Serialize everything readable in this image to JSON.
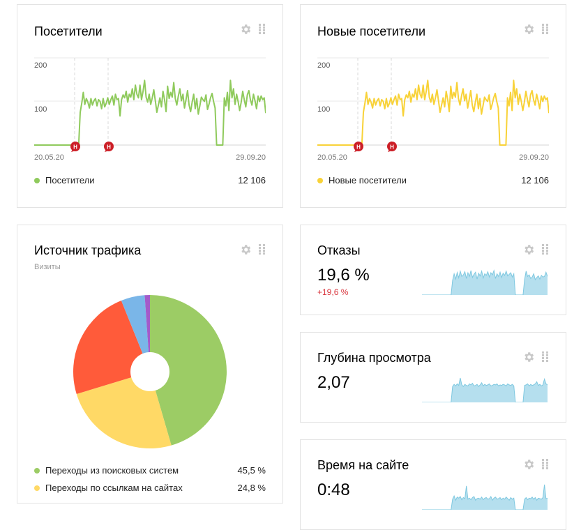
{
  "cards": {
    "visitors": {
      "title": "Посетители",
      "legend_label": "Посетители",
      "total": "12 106",
      "color": "#8fca5c",
      "y_ticks": [
        "200",
        "100"
      ],
      "date_start": "20.05.20",
      "date_end": "29.09.20",
      "marker_label": "Н"
    },
    "new_visitors": {
      "title": "Новые посетители",
      "legend_label": "Новые посетители",
      "total": "12 106",
      "color": "#f8d238",
      "y_ticks": [
        "200",
        "100"
      ],
      "date_start": "20.05.20",
      "date_end": "29.09.20",
      "marker_label": "Н"
    },
    "traffic_source": {
      "title": "Источник трафика",
      "subtitle": "Визиты",
      "items": [
        {
          "label": "Переходы из поисковых систем",
          "value": "45,5 %",
          "color": "#9ccc65"
        },
        {
          "label": "Переходы по ссылкам на сайтах",
          "value": "24,8 %",
          "color": "#ffd966"
        }
      ]
    },
    "bounces": {
      "title": "Отказы",
      "value": "19,6 %",
      "delta": "+19,6 %"
    },
    "depth": {
      "title": "Глубина просмотра",
      "value": "2,07"
    },
    "time_on_site": {
      "title": "Время на сайте",
      "value": "0:48"
    }
  },
  "icons": {
    "settings": "gear-icon",
    "drag": "drag-handle-icon",
    "marker": "event-marker-icon"
  },
  "chart_data": [
    {
      "type": "line",
      "title": "Посетители",
      "x_range": [
        "20.05.20",
        "29.09.20"
      ],
      "ylim": [
        0,
        240
      ],
      "yticks": [
        100,
        200
      ],
      "series": [
        {
          "name": "Посетители",
          "color": "#8fca5c",
          "values": [
            0,
            0,
            0,
            0,
            0,
            0,
            0,
            0,
            0,
            0,
            0,
            0,
            0,
            0,
            0,
            0,
            0,
            0,
            0,
            0,
            0,
            0,
            0,
            0,
            0,
            0,
            0,
            0,
            0,
            0,
            90,
            115,
            145,
            112,
            128,
            118,
            102,
            128,
            110,
            122,
            128,
            108,
            125,
            120,
            100,
            128,
            105,
            115,
            130,
            112,
            125,
            135,
            110,
            140,
            125,
            128,
            80,
            125,
            138,
            130,
            148,
            118,
            140,
            132,
            155,
            125,
            165,
            140,
            130,
            165,
            125,
            148,
            178,
            132,
            118,
            140,
            112,
            130,
            152,
            122,
            90,
            110,
            130,
            105,
            148,
            125,
            92,
            162,
            128,
            145,
            132,
            172,
            128,
            110,
            135,
            155,
            122,
            140,
            102,
            125,
            150,
            110,
            92,
            118,
            140,
            100,
            128,
            85,
            108,
            132,
            125,
            120,
            138,
            98,
            112,
            130,
            142,
            120,
            102,
            0,
            0,
            0,
            0,
            0,
            130,
            108,
            145,
            95,
            178,
            130,
            155,
            112,
            140,
            120,
            95,
            118,
            148,
            125,
            105,
            138,
            150,
            125,
            110,
            140,
            122,
            100,
            135,
            120,
            135,
            125,
            130,
            88
          ]
        }
      ]
    },
    {
      "type": "line",
      "title": "Новые посетители",
      "x_range": [
        "20.05.20",
        "29.09.20"
      ],
      "ylim": [
        0,
        240
      ],
      "yticks": [
        100,
        200
      ],
      "series": [
        {
          "name": "Новые посетители",
          "color": "#f8d238",
          "values": [
            0,
            0,
            0,
            0,
            0,
            0,
            0,
            0,
            0,
            0,
            0,
            0,
            0,
            0,
            0,
            0,
            0,
            0,
            0,
            0,
            0,
            0,
            0,
            0,
            0,
            0,
            0,
            0,
            0,
            0,
            90,
            115,
            145,
            112,
            128,
            118,
            102,
            128,
            110,
            122,
            128,
            108,
            125,
            120,
            100,
            128,
            105,
            115,
            130,
            112,
            125,
            135,
            110,
            140,
            125,
            128,
            80,
            125,
            138,
            130,
            148,
            118,
            140,
            132,
            155,
            125,
            165,
            140,
            130,
            165,
            125,
            148,
            178,
            132,
            118,
            140,
            112,
            130,
            152,
            122,
            90,
            110,
            130,
            105,
            148,
            125,
            92,
            162,
            128,
            145,
            132,
            172,
            128,
            110,
            135,
            155,
            122,
            140,
            102,
            125,
            150,
            110,
            92,
            118,
            140,
            100,
            128,
            85,
            108,
            132,
            125,
            120,
            138,
            98,
            112,
            130,
            142,
            120,
            102,
            0,
            0,
            0,
            0,
            0,
            130,
            108,
            145,
            95,
            178,
            130,
            155,
            112,
            140,
            120,
            95,
            118,
            148,
            125,
            105,
            138,
            150,
            125,
            110,
            140,
            122,
            100,
            135,
            120,
            135,
            125,
            130,
            88
          ]
        }
      ]
    },
    {
      "type": "pie",
      "title": "Источник трафика",
      "subtitle": "Визиты",
      "slices": [
        {
          "label": "Переходы из поисковых систем",
          "value": 45.5,
          "color": "#9ccc65"
        },
        {
          "label": "Переходы по ссылкам на сайтах",
          "value": 24.8,
          "color": "#ffd966"
        },
        {
          "value": 23.6,
          "color": "#ff5b3a"
        },
        {
          "value": 5.0,
          "color": "#7ab6e8"
        },
        {
          "value": 1.1,
          "color": "#a35bc9"
        }
      ]
    },
    {
      "type": "area",
      "title": "Отказы",
      "ylim": [
        0,
        100
      ],
      "series": [
        {
          "color": "#7ec8e0",
          "values": [
            0,
            0,
            0,
            0,
            0,
            0,
            0,
            0,
            0,
            0,
            0,
            0,
            0,
            0,
            0,
            0,
            0,
            0,
            0,
            0,
            55,
            80,
            60,
            85,
            65,
            90,
            70,
            75,
            88,
            62,
            84,
            70,
            92,
            66,
            78,
            86,
            60,
            82,
            72,
            90,
            64,
            80,
            74,
            88,
            68,
            84,
            76,
            92,
            62,
            80,
            70,
            86,
            66,
            82,
            74,
            90,
            72,
            78,
            84,
            68,
            80,
            0,
            0,
            0,
            0,
            0,
            0,
            58,
            90,
            70,
            76,
            62,
            68,
            80,
            58,
            66,
            72,
            60,
            74,
            68,
            70,
            86,
            70
          ]
        }
      ]
    },
    {
      "type": "area",
      "title": "Глубина просмотра",
      "ylim": [
        0,
        100
      ],
      "series": [
        {
          "color": "#7ec8e0",
          "values": [
            0,
            0,
            0,
            0,
            0,
            0,
            0,
            0,
            0,
            0,
            0,
            0,
            0,
            0,
            0,
            0,
            0,
            0,
            0,
            0,
            60,
            68,
            62,
            70,
            64,
            92,
            66,
            60,
            68,
            64,
            62,
            70,
            66,
            72,
            62,
            64,
            68,
            60,
            66,
            74,
            62,
            68,
            64,
            66,
            70,
            62,
            64,
            68,
            66,
            70,
            62,
            66,
            64,
            68,
            66,
            62,
            70,
            66,
            64,
            68,
            62,
            0,
            0,
            0,
            0,
            0,
            0,
            64,
            66,
            70,
            62,
            68,
            64,
            66,
            70,
            78,
            64,
            68,
            62,
            66,
            88,
            70,
            66
          ]
        }
      ]
    },
    {
      "type": "area",
      "title": "Время на сайте",
      "ylim": [
        0,
        100
      ],
      "series": [
        {
          "color": "#7ec8e0",
          "values": [
            0,
            0,
            0,
            0,
            0,
            0,
            0,
            0,
            0,
            0,
            0,
            0,
            0,
            0,
            0,
            0,
            0,
            0,
            0,
            0,
            40,
            52,
            36,
            48,
            44,
            50,
            38,
            46,
            42,
            90,
            40,
            44,
            38,
            46,
            50,
            36,
            42,
            44,
            40,
            48,
            38,
            44,
            46,
            40,
            42,
            50,
            36,
            44,
            48,
            40,
            42,
            46,
            38,
            44,
            40,
            48,
            42,
            36,
            46,
            40,
            44,
            0,
            0,
            0,
            0,
            0,
            0,
            40,
            46,
            38,
            44,
            42,
            48,
            40,
            46,
            36,
            44,
            42,
            40,
            46,
            95,
            42,
            44
          ]
        }
      ]
    }
  ]
}
